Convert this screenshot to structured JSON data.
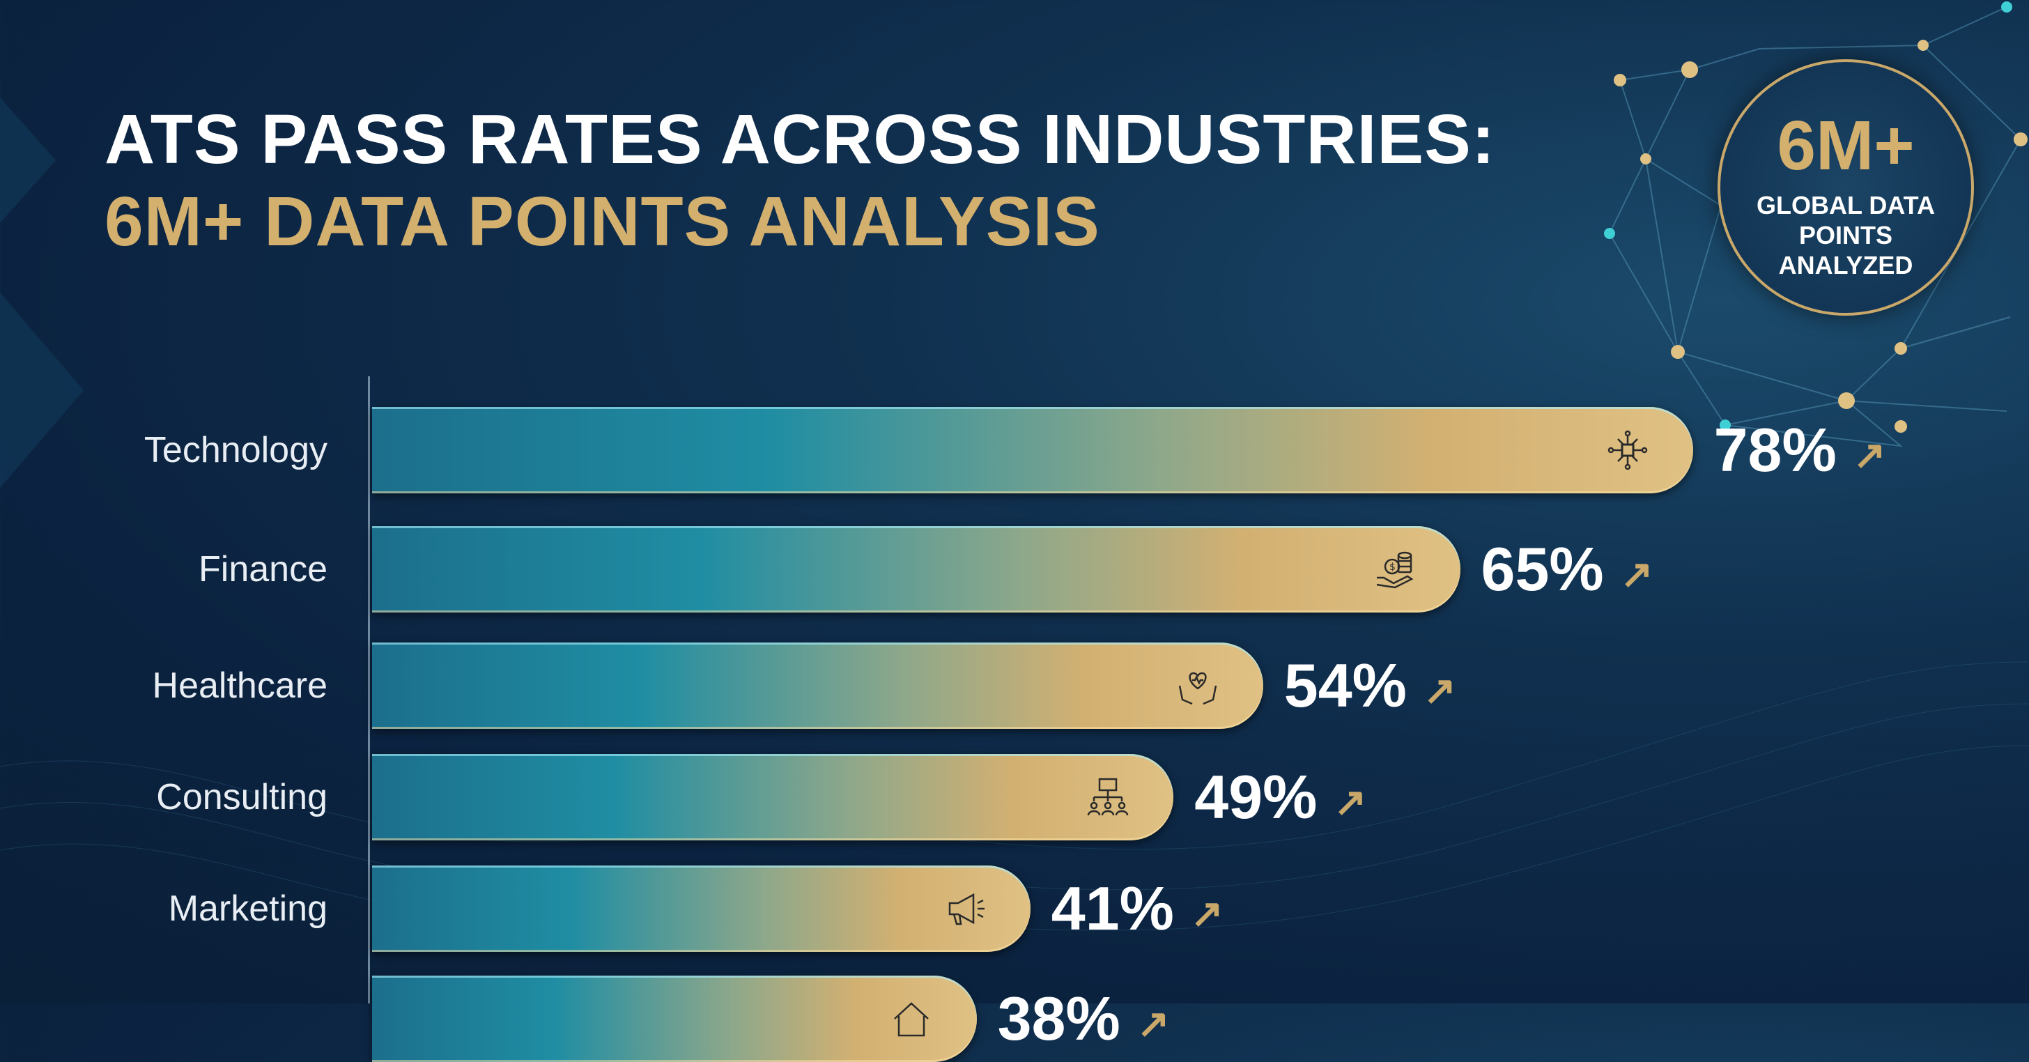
{
  "title": {
    "line1": "ATS PASS RATES ACROSS INDUSTRIES:",
    "line2": "6M+ DATA POINTS ANALYSIS"
  },
  "badge": {
    "value": "6M+",
    "caption": "GLOBAL DATA POINTS ANALYZED"
  },
  "colors": {
    "gold": "#d4b06e",
    "teal": "#1f8da3",
    "background": "#0b2340"
  },
  "chart_data": {
    "type": "bar",
    "orientation": "horizontal",
    "categories": [
      "Technology",
      "Finance",
      "Healthcare",
      "Consulting",
      "Marketing",
      ""
    ],
    "values": [
      78,
      65,
      54,
      49,
      41,
      38
    ],
    "value_labels": [
      "78%",
      "65%",
      "54%",
      "49%",
      "41%",
      "38%"
    ],
    "icons": [
      "circuit-chip-icon",
      "coins-hand-icon",
      "heart-hands-icon",
      "org-chart-icon",
      "megaphone-icon",
      "house-icon"
    ],
    "trend": "up-arrow",
    "xlim": [
      0,
      100
    ],
    "grid": false,
    "legend": "none"
  }
}
